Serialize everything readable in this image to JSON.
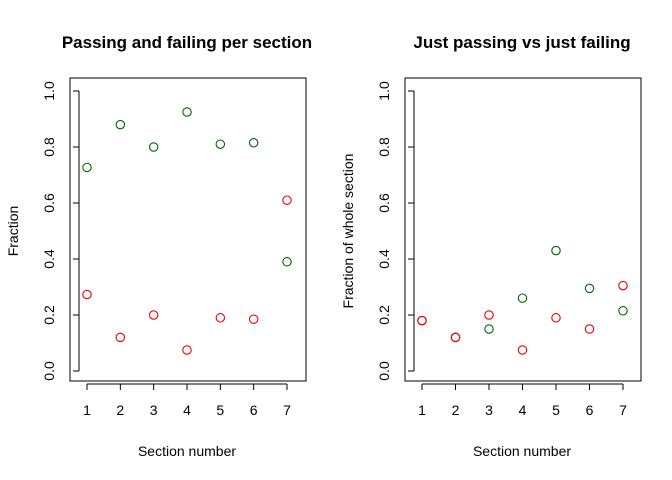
{
  "chart_data": [
    {
      "type": "scatter",
      "title": "Passing and failing per section",
      "xlabel": "Section number",
      "ylabel": "Fraction",
      "x": [
        1,
        2,
        3,
        4,
        5,
        6,
        7
      ],
      "xlim": [
        1,
        7
      ],
      "ylim": [
        0,
        1
      ],
      "xticks": [
        "1",
        "2",
        "3",
        "4",
        "5",
        "6",
        "7"
      ],
      "yticks": [
        "0.0",
        "0.2",
        "0.4",
        "0.6",
        "0.8",
        "1.0"
      ],
      "grid": false,
      "series": [
        {
          "color": "#006400",
          "marker": "open-circle",
          "values": [
            0.727,
            0.88,
            0.8,
            0.925,
            0.81,
            0.815,
            0.39
          ]
        },
        {
          "color": "#ee0000",
          "marker": "open-circle",
          "values": [
            0.273,
            0.12,
            0.2,
            0.075,
            0.19,
            0.185,
            0.61
          ]
        }
      ]
    },
    {
      "type": "scatter",
      "title": "Just passing vs just failing",
      "xlabel": "Section number",
      "ylabel": "Fraction of whole section",
      "x": [
        1,
        2,
        3,
        4,
        5,
        6,
        7
      ],
      "xlim": [
        1,
        7
      ],
      "ylim": [
        0,
        1
      ],
      "xticks": [
        "1",
        "2",
        "3",
        "4",
        "5",
        "6",
        "7"
      ],
      "yticks": [
        "0.0",
        "0.2",
        "0.4",
        "0.6",
        "0.8",
        "1.0"
      ],
      "grid": false,
      "series": [
        {
          "color": "#006400",
          "marker": "open-circle",
          "values": [
            0.18,
            0.12,
            0.15,
            0.26,
            0.43,
            0.295,
            0.215
          ]
        },
        {
          "color": "#ee0000",
          "marker": "open-circle",
          "values": [
            0.18,
            0.12,
            0.2,
            0.075,
            0.19,
            0.15,
            0.305
          ]
        }
      ]
    }
  ]
}
